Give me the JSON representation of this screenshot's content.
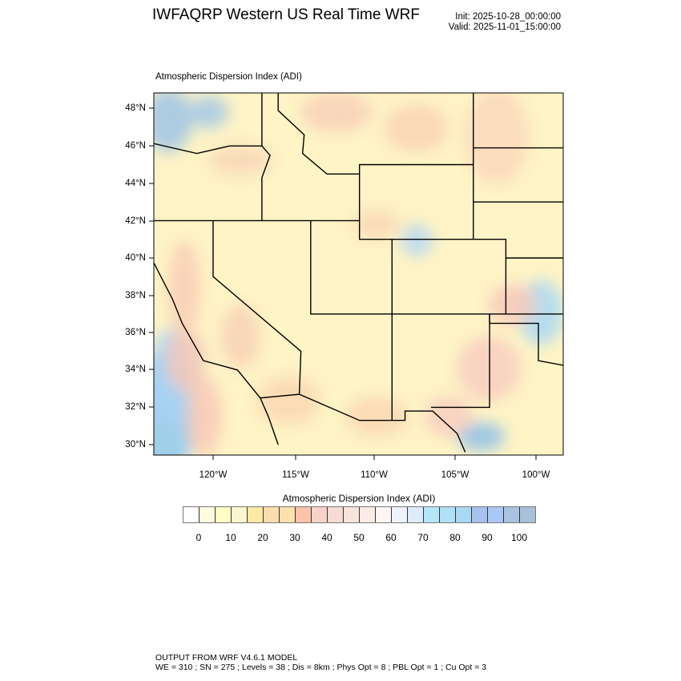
{
  "header": {
    "title": "IWFAQRP Western US Real Time WRF",
    "init": "Init: 2025-10-28_00:00:00",
    "valid": "Valid: 2025-11-01_15:00:00"
  },
  "map": {
    "subtitle": "Atmospheric Dispersion Index   (ADI)",
    "lat_labels": [
      "48°N",
      "46°N",
      "44°N",
      "42°N",
      "40°N",
      "38°N",
      "36°N",
      "34°N",
      "32°N",
      "30°N"
    ],
    "lon_labels": [
      "120°W",
      "115°W",
      "110°W",
      "105°W",
      "100°W"
    ]
  },
  "colorbar": {
    "title": "Atmospheric Dispersion Index  (ADI)",
    "labels": [
      "0",
      "10",
      "20",
      "30",
      "40",
      "50",
      "60",
      "70",
      "80",
      "90",
      "100"
    ],
    "colors": [
      "#ffffff",
      "#fffde0",
      "#fffcc4",
      "#fcf6cf",
      "#fde9a6",
      "#fddcae",
      "#fde0ac",
      "#fcc2aa",
      "#f8d2c8",
      "#f6dad3",
      "#f8e4da",
      "#fcebe6",
      "#fef5f5",
      "#eef3fc",
      "#dcecfb",
      "#b4e6fa",
      "#b0e0f8",
      "#a8d8f4",
      "#a8c2f0",
      "#a9c8f6",
      "#a8c4e2",
      "#a8c0d8"
    ]
  },
  "footer": {
    "line1": "OUTPUT FROM WRF V4.6.1 MODEL",
    "line2": "WE = 310 ; SN = 275 ; Levels = 38 ; Dis = 8km ; Phys Opt = 8 ; PBL Opt = 1 ; Cu Opt = 3"
  }
}
